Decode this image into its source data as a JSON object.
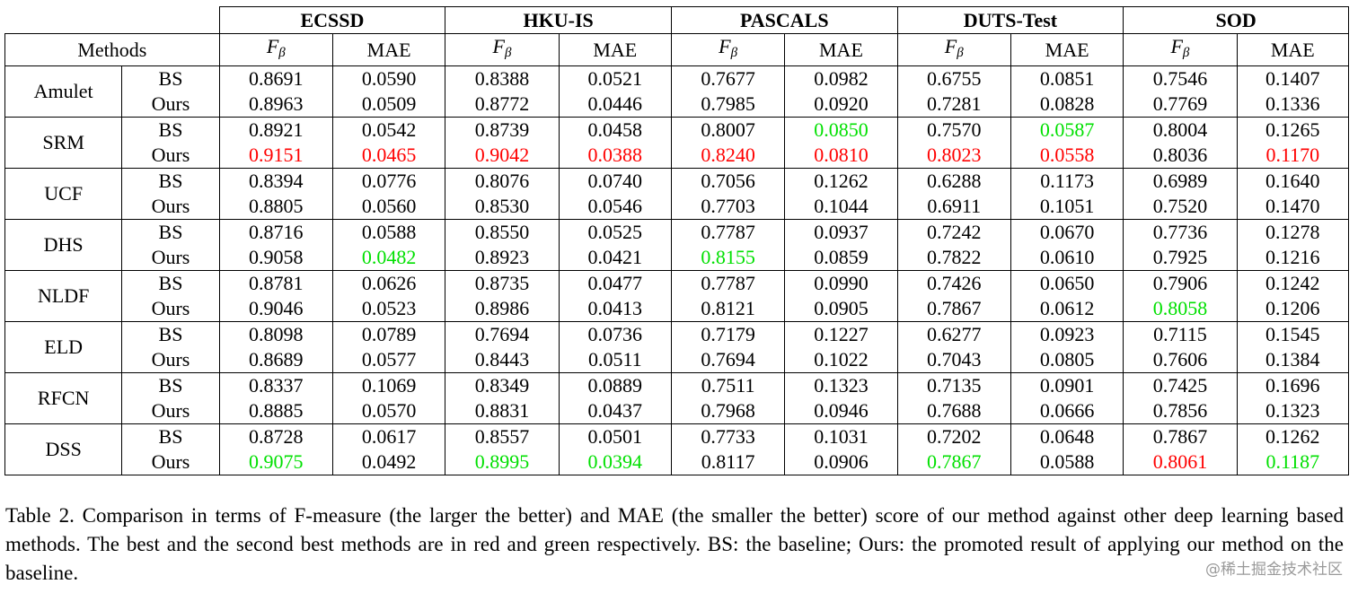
{
  "table": {
    "datasets": [
      "ECSSD",
      "HKU-IS",
      "PASCALS",
      "DUTS-Test",
      "SOD"
    ],
    "methods_label": "Methods",
    "metric_f_base": "F",
    "metric_f_sub": "β",
    "metric_mae": "MAE",
    "rows": [
      {
        "method": "Amulet",
        "variants": [
          {
            "name": "BS",
            "values": [
              [
                "0.8691",
                ""
              ],
              [
                "0.0590",
                ""
              ],
              [
                "0.8388",
                ""
              ],
              [
                "0.0521",
                ""
              ],
              [
                "0.7677",
                ""
              ],
              [
                "0.0982",
                ""
              ],
              [
                "0.6755",
                ""
              ],
              [
                "0.0851",
                ""
              ],
              [
                "0.7546",
                ""
              ],
              [
                "0.1407",
                ""
              ]
            ]
          },
          {
            "name": "Ours",
            "values": [
              [
                "0.8963",
                ""
              ],
              [
                "0.0509",
                ""
              ],
              [
                "0.8772",
                ""
              ],
              [
                "0.0446",
                ""
              ],
              [
                "0.7985",
                ""
              ],
              [
                "0.0920",
                ""
              ],
              [
                "0.7281",
                ""
              ],
              [
                "0.0828",
                ""
              ],
              [
                "0.7769",
                ""
              ],
              [
                "0.1336",
                ""
              ]
            ]
          }
        ]
      },
      {
        "method": "SRM",
        "variants": [
          {
            "name": "BS",
            "values": [
              [
                "0.8921",
                ""
              ],
              [
                "0.0542",
                ""
              ],
              [
                "0.8739",
                ""
              ],
              [
                "0.0458",
                ""
              ],
              [
                "0.8007",
                ""
              ],
              [
                "0.0850",
                "green"
              ],
              [
                "0.7570",
                ""
              ],
              [
                "0.0587",
                "green"
              ],
              [
                "0.8004",
                ""
              ],
              [
                "0.1265",
                ""
              ]
            ]
          },
          {
            "name": "Ours",
            "values": [
              [
                "0.9151",
                "red"
              ],
              [
                "0.0465",
                "red"
              ],
              [
                "0.9042",
                "red"
              ],
              [
                "0.0388",
                "red"
              ],
              [
                "0.8240",
                "red"
              ],
              [
                "0.0810",
                "red"
              ],
              [
                "0.8023",
                "red"
              ],
              [
                "0.0558",
                "red"
              ],
              [
                "0.8036",
                ""
              ],
              [
                "0.1170",
                "red"
              ]
            ]
          }
        ]
      },
      {
        "method": "UCF",
        "variants": [
          {
            "name": "BS",
            "values": [
              [
                "0.8394",
                ""
              ],
              [
                "0.0776",
                ""
              ],
              [
                "0.8076",
                ""
              ],
              [
                "0.0740",
                ""
              ],
              [
                "0.7056",
                ""
              ],
              [
                "0.1262",
                ""
              ],
              [
                "0.6288",
                ""
              ],
              [
                "0.1173",
                ""
              ],
              [
                "0.6989",
                ""
              ],
              [
                "0.1640",
                ""
              ]
            ]
          },
          {
            "name": "Ours",
            "values": [
              [
                "0.8805",
                ""
              ],
              [
                "0.0560",
                ""
              ],
              [
                "0.8530",
                ""
              ],
              [
                "0.0546",
                ""
              ],
              [
                "0.7703",
                ""
              ],
              [
                "0.1044",
                ""
              ],
              [
                "0.6911",
                ""
              ],
              [
                "0.1051",
                ""
              ],
              [
                "0.7520",
                ""
              ],
              [
                "0.1470",
                ""
              ]
            ]
          }
        ]
      },
      {
        "method": "DHS",
        "variants": [
          {
            "name": "BS",
            "values": [
              [
                "0.8716",
                ""
              ],
              [
                "0.0588",
                ""
              ],
              [
                "0.8550",
                ""
              ],
              [
                "0.0525",
                ""
              ],
              [
                "0.7787",
                ""
              ],
              [
                "0.0937",
                ""
              ],
              [
                "0.7242",
                ""
              ],
              [
                "0.0670",
                ""
              ],
              [
                "0.7736",
                ""
              ],
              [
                "0.1278",
                ""
              ]
            ]
          },
          {
            "name": "Ours",
            "values": [
              [
                "0.9058",
                ""
              ],
              [
                "0.0482",
                "green"
              ],
              [
                "0.8923",
                ""
              ],
              [
                "0.0421",
                ""
              ],
              [
                "0.8155",
                "green"
              ],
              [
                "0.0859",
                ""
              ],
              [
                "0.7822",
                ""
              ],
              [
                "0.0610",
                ""
              ],
              [
                "0.7925",
                ""
              ],
              [
                "0.1216",
                ""
              ]
            ]
          }
        ]
      },
      {
        "method": "NLDF",
        "variants": [
          {
            "name": "BS",
            "values": [
              [
                "0.8781",
                ""
              ],
              [
                "0.0626",
                ""
              ],
              [
                "0.8735",
                ""
              ],
              [
                "0.0477",
                ""
              ],
              [
                "0.7787",
                ""
              ],
              [
                "0.0990",
                ""
              ],
              [
                "0.7426",
                ""
              ],
              [
                "0.0650",
                ""
              ],
              [
                "0.7906",
                ""
              ],
              [
                "0.1242",
                ""
              ]
            ]
          },
          {
            "name": "Ours",
            "values": [
              [
                "0.9046",
                ""
              ],
              [
                "0.0523",
                ""
              ],
              [
                "0.8986",
                ""
              ],
              [
                "0.0413",
                ""
              ],
              [
                "0.8121",
                ""
              ],
              [
                "0.0905",
                ""
              ],
              [
                "0.7867",
                ""
              ],
              [
                "0.0612",
                ""
              ],
              [
                "0.8058",
                "green"
              ],
              [
                "0.1206",
                ""
              ]
            ]
          }
        ]
      },
      {
        "method": "ELD",
        "variants": [
          {
            "name": "BS",
            "values": [
              [
                "0.8098",
                ""
              ],
              [
                "0.0789",
                ""
              ],
              [
                "0.7694",
                ""
              ],
              [
                "0.0736",
                ""
              ],
              [
                "0.7179",
                ""
              ],
              [
                "0.1227",
                ""
              ],
              [
                "0.6277",
                ""
              ],
              [
                "0.0923",
                ""
              ],
              [
                "0.7115",
                ""
              ],
              [
                "0.1545",
                ""
              ]
            ]
          },
          {
            "name": "Ours",
            "values": [
              [
                "0.8689",
                ""
              ],
              [
                "0.0577",
                ""
              ],
              [
                "0.8443",
                ""
              ],
              [
                "0.0511",
                ""
              ],
              [
                "0.7694",
                ""
              ],
              [
                "0.1022",
                ""
              ],
              [
                "0.7043",
                ""
              ],
              [
                "0.0805",
                ""
              ],
              [
                "0.7606",
                ""
              ],
              [
                "0.1384",
                ""
              ]
            ]
          }
        ]
      },
      {
        "method": "RFCN",
        "variants": [
          {
            "name": "BS",
            "values": [
              [
                "0.8337",
                ""
              ],
              [
                "0.1069",
                ""
              ],
              [
                "0.8349",
                ""
              ],
              [
                "0.0889",
                ""
              ],
              [
                "0.7511",
                ""
              ],
              [
                "0.1323",
                ""
              ],
              [
                "0.7135",
                ""
              ],
              [
                "0.0901",
                ""
              ],
              [
                "0.7425",
                ""
              ],
              [
                "0.1696",
                ""
              ]
            ]
          },
          {
            "name": "Ours",
            "values": [
              [
                "0.8885",
                ""
              ],
              [
                "0.0570",
                ""
              ],
              [
                "0.8831",
                ""
              ],
              [
                "0.0437",
                ""
              ],
              [
                "0.7968",
                ""
              ],
              [
                "0.0946",
                ""
              ],
              [
                "0.7688",
                ""
              ],
              [
                "0.0666",
                ""
              ],
              [
                "0.7856",
                ""
              ],
              [
                "0.1323",
                ""
              ]
            ]
          }
        ]
      },
      {
        "method": "DSS",
        "variants": [
          {
            "name": "BS",
            "values": [
              [
                "0.8728",
                ""
              ],
              [
                "0.0617",
                ""
              ],
              [
                "0.8557",
                ""
              ],
              [
                "0.0501",
                ""
              ],
              [
                "0.7733",
                ""
              ],
              [
                "0.1031",
                ""
              ],
              [
                "0.7202",
                ""
              ],
              [
                "0.0648",
                ""
              ],
              [
                "0.7867",
                ""
              ],
              [
                "0.1262",
                ""
              ]
            ]
          },
          {
            "name": "Ours",
            "values": [
              [
                "0.9075",
                "green"
              ],
              [
                "0.0492",
                ""
              ],
              [
                "0.8995",
                "green"
              ],
              [
                "0.0394",
                "green"
              ],
              [
                "0.8117",
                ""
              ],
              [
                "0.0906",
                ""
              ],
              [
                "0.7867",
                "green"
              ],
              [
                "0.0588",
                ""
              ],
              [
                "0.8061",
                "red"
              ],
              [
                "0.1187",
                "green"
              ]
            ]
          }
        ]
      }
    ]
  },
  "caption": "Table 2. Comparison in terms of F-measure (the larger the better) and MAE (the smaller the better) score of our method against other deep learning based methods. The best and the second best methods are in red and green respectively. BS: the baseline; Ours: the promoted result of applying our method on the baseline.",
  "watermark": "@稀土掘金技术社区",
  "colors": {
    "best": "#ff0000",
    "second_best": "#00e000"
  }
}
